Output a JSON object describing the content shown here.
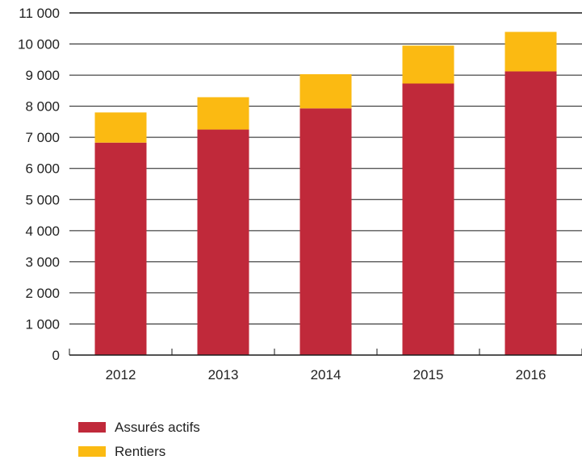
{
  "chart_data": {
    "type": "bar",
    "stacked": true,
    "title": "",
    "xlabel": "",
    "ylabel": "",
    "categories": [
      "2012",
      "2013",
      "2014",
      "2015",
      "2016"
    ],
    "series": [
      {
        "name": "Assurés actifs",
        "color": "#c0293a",
        "values": [
          6830,
          7250,
          7930,
          8730,
          9120
        ]
      },
      {
        "name": "Rentiers",
        "color": "#fbba12",
        "values": [
          970,
          1040,
          1100,
          1220,
          1270
        ]
      }
    ],
    "ylim": [
      0,
      11000
    ],
    "yticks": [
      0,
      1000,
      2000,
      3000,
      4000,
      5000,
      6000,
      7000,
      8000,
      9000,
      10000,
      11000
    ],
    "ytick_labels": [
      "0",
      "1 000",
      "2 000",
      "3 000",
      "4 000",
      "5 000",
      "6 000",
      "7 000",
      "8 000",
      "9 000",
      "10 000",
      "11 000"
    ],
    "grid": true,
    "legend": {
      "position": "bottom-left"
    }
  }
}
